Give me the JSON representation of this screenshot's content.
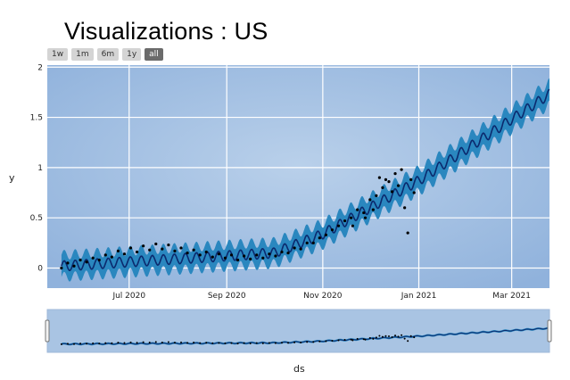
{
  "title": "Visualizations : US",
  "range_buttons": [
    "1w",
    "1m",
    "6m",
    "1y",
    "all"
  ],
  "active_range": "all",
  "colors": {
    "plot_bg": "#a5c1e1",
    "band": "#2a87bf",
    "forecast": "#0b2a6e",
    "points": "#000000",
    "grid": "#ffffff"
  },
  "chart_data": {
    "type": "line",
    "title": "Visualizations : US",
    "xlabel": "ds",
    "ylabel": "y",
    "x_tick_labels": [
      "Jul 2020",
      "Sep 2020",
      "Nov 2020",
      "Jan 2021",
      "Mar 2021"
    ],
    "x_tick_dates": [
      "2020-07-01",
      "2020-09-01",
      "2020-11-01",
      "2021-01-01",
      "2021-03-01"
    ],
    "y_tick_labels": [
      "0",
      "0.5",
      "1",
      "1.5",
      "2"
    ],
    "xlim": [
      "2020-05-10",
      "2021-03-25"
    ],
    "ylim": [
      -0.2,
      2.02
    ],
    "grid": true,
    "series": [
      {
        "kind": "forecast",
        "trend_dates": [
          "2020-05-19",
          "2020-10-01",
          "2020-10-31",
          "2021-01-01",
          "2021-03-25"
        ],
        "trend_values": [
          0.02,
          0.15,
          0.33,
          0.87,
          1.73
        ],
        "seasonal_period_days": 7,
        "seasonal_amplitude": 0.05,
        "band_halfwidth": 0.11
      },
      {
        "kind": "observed",
        "points": [
          [
            "2020-05-19",
            0.0
          ],
          [
            "2020-05-23",
            0.05
          ],
          [
            "2020-05-27",
            0.02
          ],
          [
            "2020-05-31",
            0.08
          ],
          [
            "2020-06-04",
            0.06
          ],
          [
            "2020-06-08",
            0.1
          ],
          [
            "2020-06-12",
            0.08
          ],
          [
            "2020-06-16",
            0.13
          ],
          [
            "2020-06-20",
            0.11
          ],
          [
            "2020-06-24",
            0.17
          ],
          [
            "2020-06-28",
            0.14
          ],
          [
            "2020-07-02",
            0.2
          ],
          [
            "2020-07-06",
            0.16
          ],
          [
            "2020-07-10",
            0.22
          ],
          [
            "2020-07-14",
            0.18
          ],
          [
            "2020-07-18",
            0.24
          ],
          [
            "2020-07-22",
            0.19
          ],
          [
            "2020-07-26",
            0.23
          ],
          [
            "2020-07-30",
            0.17
          ],
          [
            "2020-08-03",
            0.2
          ],
          [
            "2020-08-07",
            0.15
          ],
          [
            "2020-08-11",
            0.18
          ],
          [
            "2020-08-15",
            0.13
          ],
          [
            "2020-08-19",
            0.16
          ],
          [
            "2020-08-23",
            0.11
          ],
          [
            "2020-08-27",
            0.14
          ],
          [
            "2020-08-31",
            0.1
          ],
          [
            "2020-09-04",
            0.13
          ],
          [
            "2020-09-08",
            0.08
          ],
          [
            "2020-09-12",
            0.12
          ],
          [
            "2020-09-16",
            0.09
          ],
          [
            "2020-09-20",
            0.13
          ],
          [
            "2020-09-24",
            0.1
          ],
          [
            "2020-09-28",
            0.14
          ],
          [
            "2020-10-02",
            0.12
          ],
          [
            "2020-10-06",
            0.16
          ],
          [
            "2020-10-10",
            0.15
          ],
          [
            "2020-10-14",
            0.2
          ],
          [
            "2020-10-18",
            0.19
          ],
          [
            "2020-10-22",
            0.25
          ],
          [
            "2020-10-26",
            0.25
          ],
          [
            "2020-10-30",
            0.3
          ],
          [
            "2020-11-03",
            0.33
          ],
          [
            "2020-11-07",
            0.38
          ],
          [
            "2020-11-11",
            0.42
          ],
          [
            "2020-11-15",
            0.47
          ],
          [
            "2020-11-19",
            0.5
          ],
          [
            "2020-11-23",
            0.58
          ],
          [
            "2020-11-27",
            0.55
          ],
          [
            "2020-12-01",
            0.68
          ],
          [
            "2020-12-05",
            0.72
          ],
          [
            "2020-12-09",
            0.8
          ],
          [
            "2020-12-13",
            0.86
          ],
          [
            "2020-12-17",
            0.94
          ],
          [
            "2020-12-19",
            0.82
          ],
          [
            "2020-12-21",
            0.98
          ],
          [
            "2020-12-23",
            0.6
          ],
          [
            "2020-12-25",
            0.35
          ],
          [
            "2020-12-27",
            0.88
          ],
          [
            "2020-12-29",
            0.75
          ],
          [
            "2020-11-20",
            0.42
          ],
          [
            "2020-11-28",
            0.5
          ],
          [
            "2020-12-03",
            0.58
          ],
          [
            "2020-12-11",
            0.88
          ],
          [
            "2020-12-15",
            0.76
          ],
          [
            "2020-12-07",
            0.9
          ]
        ]
      }
    ]
  },
  "ui": {
    "rangeslider": true,
    "y_axis_title": "y",
    "x_axis_title": "ds"
  }
}
